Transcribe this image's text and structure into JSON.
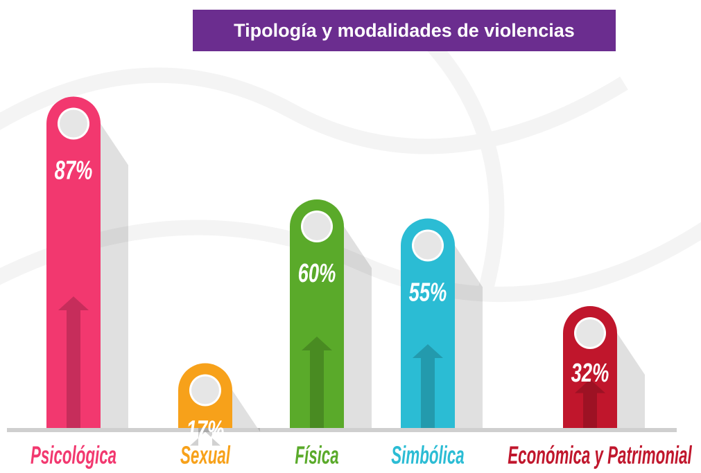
{
  "chart_data": {
    "type": "bar",
    "title": "Tipología y modalidades de violencias",
    "categories": [
      "Psicológica",
      "Sexual",
      "Física",
      "Simbólica",
      "Económica y Patrimonial"
    ],
    "values": [
      87,
      17,
      60,
      55,
      32
    ],
    "value_labels": [
      "87%",
      "17%",
      "60%",
      "55%",
      "32%"
    ],
    "colors": [
      "#f2386f",
      "#f7a11a",
      "#5aaa2a",
      "#2bbcd4",
      "#c0162c"
    ]
  }
}
